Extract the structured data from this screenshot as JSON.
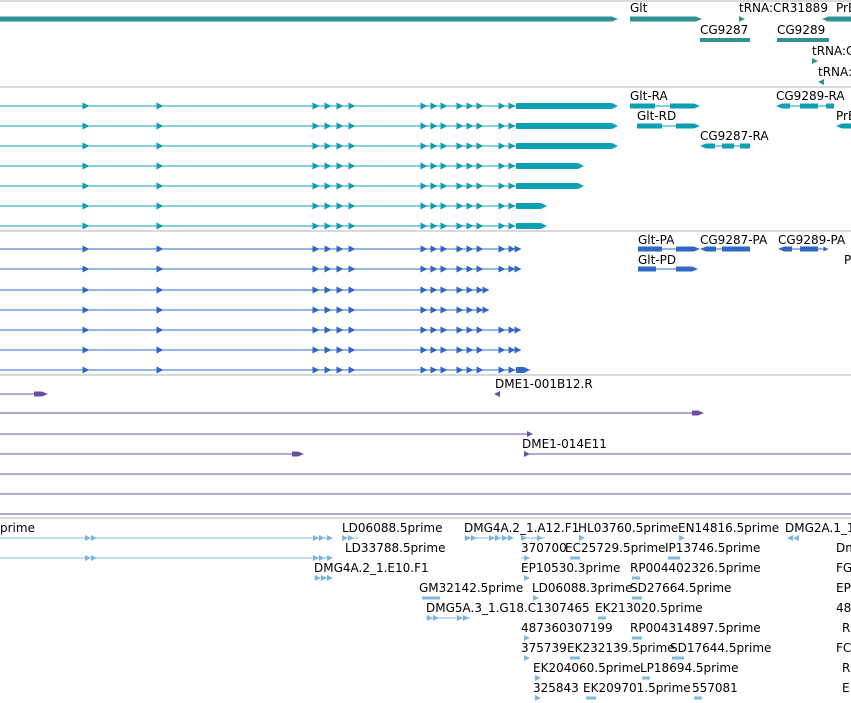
{
  "colors": {
    "gene": "#2f9191",
    "transcript": "#0e9fb5",
    "protein": "#3168c4",
    "clone": "#6b4ea3",
    "est": "#80b8dd",
    "divider": "#b4b4b4"
  },
  "gene_track": {
    "labels": [
      "Glt",
      "tRNA:CR31889",
      "PrB",
      "CG9287",
      "CG9289",
      "tRNA:C",
      "tRNA:"
    ]
  },
  "transcript_track": {
    "labels": [
      "Glt-RA",
      "Glt-RD",
      "CG9289-RA",
      "PrB",
      "CG9287-RA"
    ]
  },
  "protein_track": {
    "labels": [
      "Glt-PA",
      "CG9287-PA",
      "CG9289-PA",
      "Glt-PD",
      "P"
    ]
  },
  "clone_track": {
    "labels": [
      "DME1-001B12.R",
      "DME1-014E11"
    ]
  },
  "est_track": {
    "labels": [
      "prime",
      "LD06088.5prime",
      "DMG4A.2_1.A12.F1",
      "HL03760.5prime",
      "EN14816.5prime",
      "DMG2A.1_1",
      "LD33788.5prime",
      "370700",
      "EC25729.5prime",
      "IP13746.5prime",
      "Dm",
      "DMG4A.2_1.E10.F1",
      "EP10530.3prime",
      "RP004402326.5prime",
      "FG",
      "GM32142.5prime",
      "LD06088.3prime",
      "SD27664.5prime",
      "EP",
      "DMG5A.3_1.G18.C1307465",
      "EK213020.5prime",
      "48",
      "487360307199",
      "RP004314897.5prime",
      "R",
      "375739",
      "EK232139.5prime",
      "SD17644.5prime",
      "FC",
      "EK204060.5prime",
      "LP18694.5prime",
      "R",
      "325843",
      "EK209701.5prime",
      "557081",
      "E"
    ]
  }
}
